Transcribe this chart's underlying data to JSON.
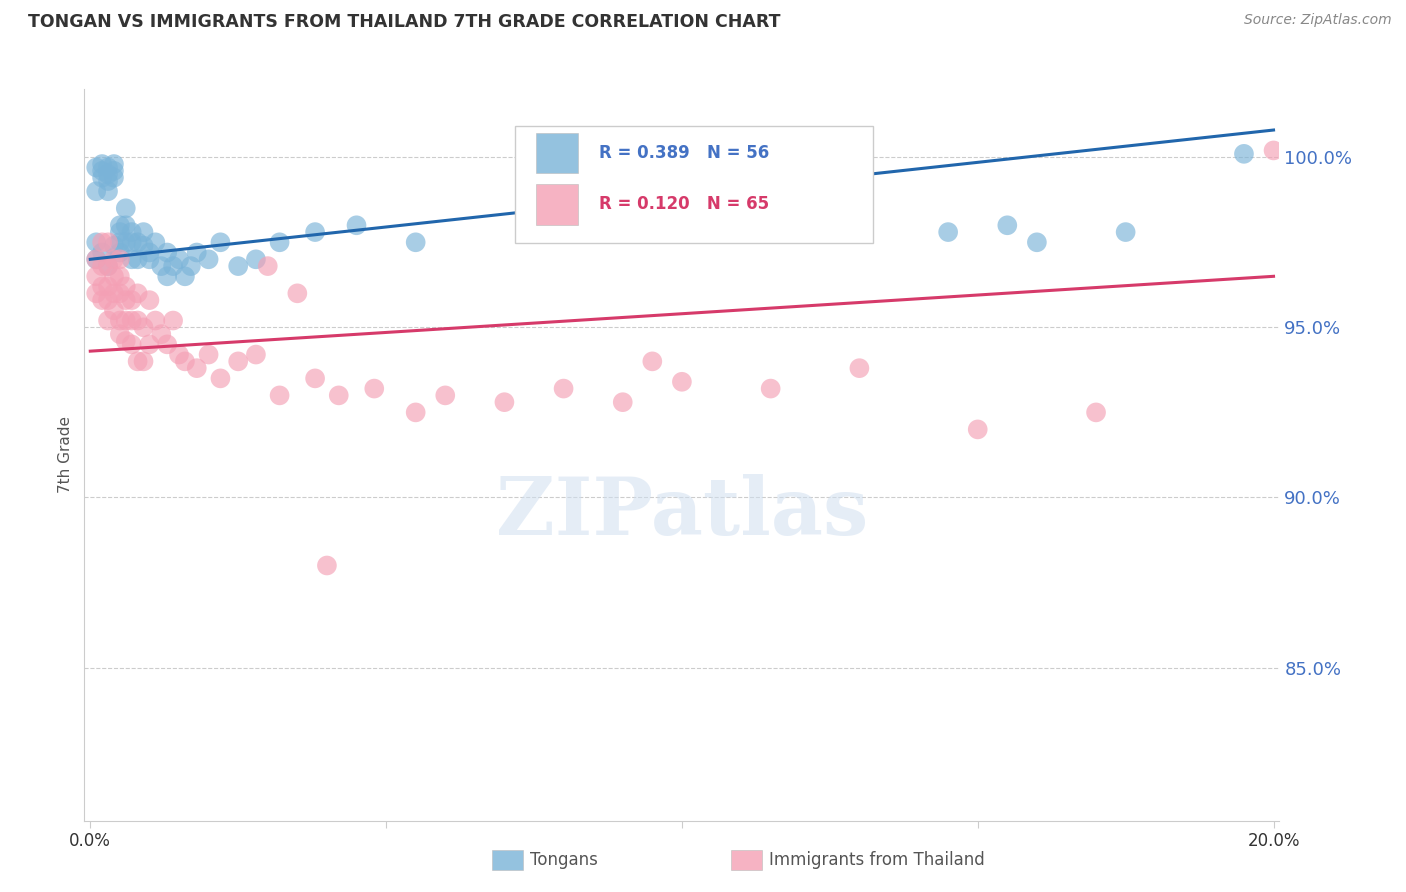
{
  "title": "TONGAN VS IMMIGRANTS FROM THAILAND 7TH GRADE CORRELATION CHART",
  "source": "Source: ZipAtlas.com",
  "ylabel": "7th Grade",
  "ylim": [
    0.805,
    1.02
  ],
  "xlim": [
    -0.001,
    0.201
  ],
  "legend_label1": "Tongans",
  "legend_label2": "Immigrants from Thailand",
  "blue_color": "#7ab3d8",
  "pink_color": "#f4a0b5",
  "blue_line_color": "#2166ac",
  "pink_line_color": "#d63a6a",
  "blue_r": 0.389,
  "blue_n": 56,
  "pink_r": 0.12,
  "pink_n": 65,
  "blue_line_x0": 0.0,
  "blue_line_y0": 0.97,
  "blue_line_x1": 0.2,
  "blue_line_y1": 1.008,
  "pink_line_x0": 0.0,
  "pink_line_y0": 0.943,
  "pink_line_x1": 0.2,
  "pink_line_y1": 0.965,
  "blue_x": [
    0.001,
    0.001,
    0.001,
    0.002,
    0.002,
    0.002,
    0.003,
    0.003,
    0.003,
    0.003,
    0.004,
    0.004,
    0.004,
    0.005,
    0.005,
    0.005,
    0.006,
    0.006,
    0.007,
    0.007,
    0.007,
    0.008,
    0.008,
    0.009,
    0.009,
    0.01,
    0.01,
    0.011,
    0.012,
    0.013,
    0.013,
    0.014,
    0.015,
    0.016,
    0.017,
    0.018,
    0.02,
    0.022,
    0.025,
    0.028,
    0.032,
    0.038,
    0.045,
    0.055,
    0.11,
    0.145,
    0.155,
    0.16,
    0.175,
    0.195,
    0.001,
    0.002,
    0.003,
    0.004,
    0.005,
    0.006
  ],
  "blue_y": [
    0.997,
    0.99,
    0.975,
    0.998,
    0.996,
    0.994,
    0.997,
    0.995,
    0.993,
    0.99,
    0.998,
    0.996,
    0.994,
    0.98,
    0.978,
    0.975,
    0.985,
    0.98,
    0.978,
    0.975,
    0.97,
    0.975,
    0.97,
    0.978,
    0.974,
    0.972,
    0.97,
    0.975,
    0.968,
    0.972,
    0.965,
    0.968,
    0.97,
    0.965,
    0.968,
    0.972,
    0.97,
    0.975,
    0.968,
    0.97,
    0.975,
    0.978,
    0.98,
    0.975,
    0.985,
    0.978,
    0.98,
    0.975,
    0.978,
    1.001,
    0.97,
    0.972,
    0.968,
    0.974,
    0.972,
    0.975
  ],
  "pink_x": [
    0.001,
    0.001,
    0.001,
    0.002,
    0.002,
    0.002,
    0.002,
    0.003,
    0.003,
    0.003,
    0.003,
    0.003,
    0.004,
    0.004,
    0.004,
    0.004,
    0.005,
    0.005,
    0.005,
    0.005,
    0.005,
    0.006,
    0.006,
    0.006,
    0.006,
    0.007,
    0.007,
    0.007,
    0.008,
    0.008,
    0.008,
    0.009,
    0.009,
    0.01,
    0.01,
    0.011,
    0.012,
    0.013,
    0.014,
    0.015,
    0.016,
    0.018,
    0.02,
    0.022,
    0.025,
    0.028,
    0.032,
    0.038,
    0.042,
    0.048,
    0.055,
    0.06,
    0.07,
    0.08,
    0.09,
    0.1,
    0.115,
    0.13,
    0.15,
    0.17,
    0.03,
    0.035,
    0.04,
    0.095,
    0.2
  ],
  "pink_y": [
    0.97,
    0.965,
    0.96,
    0.975,
    0.968,
    0.962,
    0.958,
    0.975,
    0.968,
    0.962,
    0.958,
    0.952,
    0.97,
    0.965,
    0.96,
    0.955,
    0.97,
    0.965,
    0.96,
    0.952,
    0.948,
    0.962,
    0.958,
    0.952,
    0.946,
    0.958,
    0.952,
    0.945,
    0.96,
    0.952,
    0.94,
    0.95,
    0.94,
    0.958,
    0.945,
    0.952,
    0.948,
    0.945,
    0.952,
    0.942,
    0.94,
    0.938,
    0.942,
    0.935,
    0.94,
    0.942,
    0.93,
    0.935,
    0.93,
    0.932,
    0.925,
    0.93,
    0.928,
    0.932,
    0.928,
    0.934,
    0.932,
    0.938,
    0.92,
    0.925,
    0.968,
    0.96,
    0.88,
    0.94,
    1.002
  ],
  "watermark": "ZIPatlas",
  "background_color": "#ffffff",
  "grid_color": "#cccccc"
}
